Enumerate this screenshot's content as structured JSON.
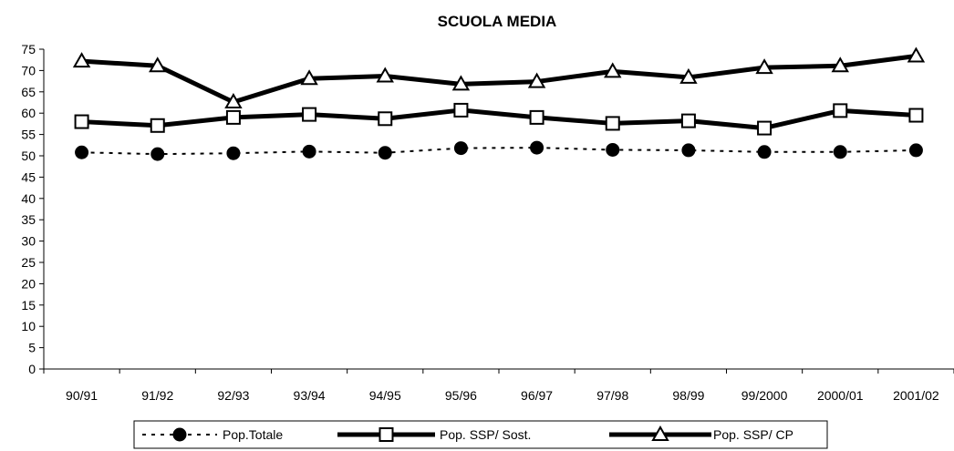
{
  "chart_data": {
    "type": "line",
    "title": "SCUOLA  MEDIA",
    "xlabel": "",
    "ylabel": "",
    "categories": [
      "90/91",
      "91/92",
      "92/93",
      "93/94",
      "94/95",
      "95/96",
      "96/97",
      "97/98",
      "98/99",
      "99/2000",
      "2000/01",
      "2001/02"
    ],
    "ylim": [
      0,
      75
    ],
    "yticks": [
      0,
      5,
      10,
      15,
      20,
      25,
      30,
      35,
      40,
      45,
      50,
      55,
      60,
      65,
      70,
      75
    ],
    "grid": false,
    "legend_position": "bottom",
    "series": [
      {
        "name": "Pop.Totale",
        "marker": "filled-circle",
        "line": "dotted",
        "values": [
          50.8,
          50.4,
          50.6,
          51.0,
          50.7,
          51.8,
          51.9,
          51.4,
          51.3,
          50.9,
          50.9,
          51.3
        ]
      },
      {
        "name": "Pop. SSP/ Sost.",
        "marker": "open-square",
        "line": "thick",
        "values": [
          58.0,
          57.1,
          59.0,
          59.7,
          58.7,
          60.7,
          59.0,
          57.6,
          58.2,
          56.5,
          60.6,
          59.5
        ]
      },
      {
        "name": "Pop. SSP/ CP",
        "marker": "open-triangle",
        "line": "thick",
        "values": [
          72.2,
          71.1,
          62.6,
          68.1,
          68.7,
          66.8,
          67.4,
          69.8,
          68.4,
          70.7,
          71.1,
          73.4
        ]
      }
    ],
    "colors": {
      "line": "#000000",
      "background": "#ffffff"
    }
  }
}
